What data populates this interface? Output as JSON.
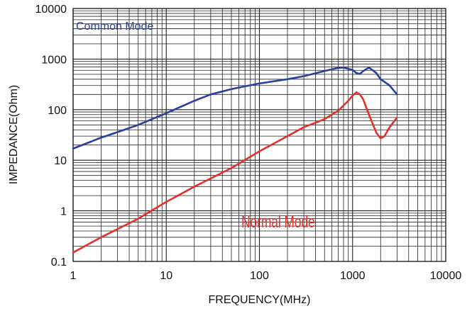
{
  "chart_data": {
    "type": "line",
    "title": "",
    "xlabel": "FREQUENCY(MHz)",
    "ylabel": "IMPEDANCE(Ohm)",
    "x_scale": "log",
    "y_scale": "log",
    "xlim": [
      1,
      10000
    ],
    "ylim": [
      0.1,
      10000
    ],
    "grid": true,
    "x_ticks": [
      1,
      10,
      100,
      1000,
      10000
    ],
    "x_tick_labels": [
      "1",
      "10",
      "100",
      "1000",
      "10000"
    ],
    "y_ticks": [
      0.1,
      1,
      10,
      100,
      1000,
      10000
    ],
    "y_tick_labels": [
      "0.1",
      "1",
      "10",
      "100",
      "1000",
      "10000"
    ],
    "series": [
      {
        "name": "Common Mode",
        "color": "#2b3f9e",
        "x": [
          1,
          2,
          3,
          5,
          10,
          20,
          30,
          50,
          100,
          200,
          300,
          500,
          700,
          800,
          1000,
          1100,
          1200,
          1300,
          1500,
          1800,
          2000,
          2500,
          3000
        ],
        "y": [
          17,
          28,
          36,
          50,
          85,
          150,
          200,
          255,
          330,
          400,
          460,
          580,
          670,
          680,
          610,
          530,
          510,
          580,
          680,
          530,
          400,
          300,
          200
        ]
      },
      {
        "name": "Normal Mode",
        "color": "#e2302b",
        "x": [
          1,
          2,
          5,
          10,
          20,
          50,
          100,
          200,
          300,
          500,
          700,
          900,
          1000,
          1100,
          1200,
          1300,
          1500,
          1800,
          2000,
          2200,
          2500,
          3000
        ],
        "y": [
          0.15,
          0.3,
          0.7,
          1.5,
          3,
          7,
          15,
          30,
          45,
          65,
          95,
          150,
          190,
          220,
          200,
          160,
          80,
          35,
          27,
          30,
          45,
          70
        ]
      }
    ]
  }
}
